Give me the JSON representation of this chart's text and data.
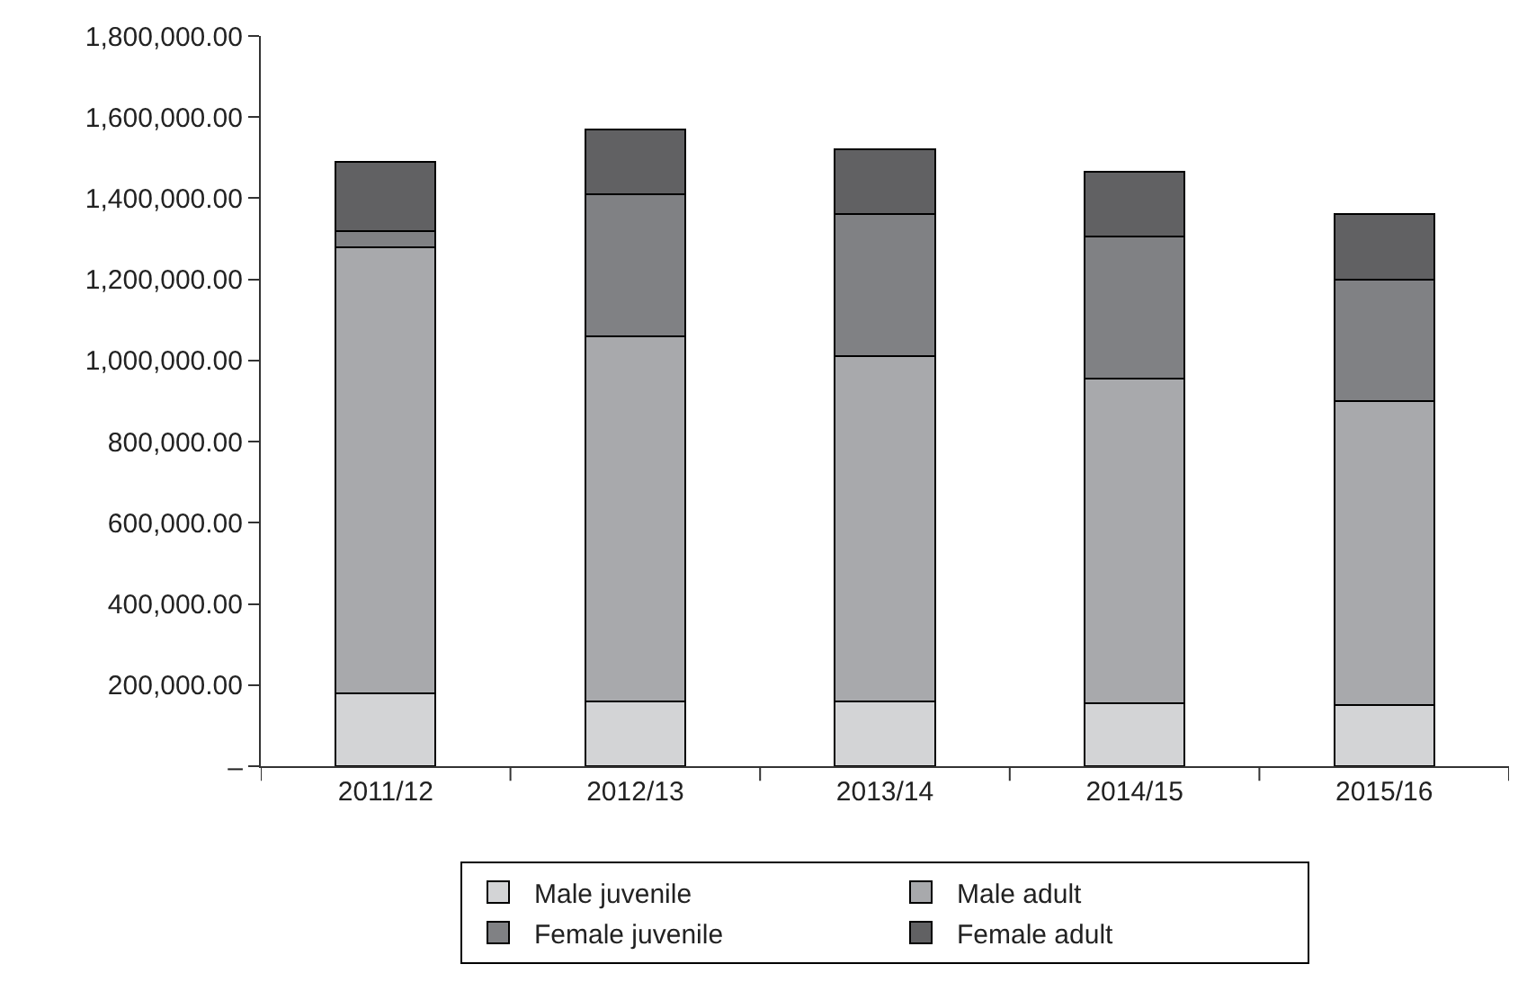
{
  "chart_data": {
    "type": "bar",
    "stacked": true,
    "categories": [
      "2011/12",
      "2012/13",
      "2013/14",
      "2014/15",
      "2015/16"
    ],
    "series": [
      {
        "name": "Male juvenile",
        "color": "#d3d4d6",
        "values": [
          180000,
          160000,
          160000,
          155000,
          150000
        ]
      },
      {
        "name": "Male adult",
        "color": "#a8a9ac",
        "values": [
          1100000,
          900000,
          850000,
          800000,
          750000
        ]
      },
      {
        "name": "Female juvenile",
        "color": "#808184",
        "values": [
          40000,
          350000,
          350000,
          350000,
          300000
        ]
      },
      {
        "name": "Female adult",
        "color": "#616163",
        "values": [
          170000,
          160000,
          160000,
          160000,
          160000
        ]
      }
    ],
    "ylim": [
      0,
      1800000
    ],
    "yticks": [
      {
        "value": 0,
        "label": "–"
      },
      {
        "value": 200000,
        "label": "200,000.00"
      },
      {
        "value": 400000,
        "label": "400,000.00"
      },
      {
        "value": 600000,
        "label": "600,000.00"
      },
      {
        "value": 800000,
        "label": "800,000.00"
      },
      {
        "value": 1000000,
        "label": "1,000,000.00"
      },
      {
        "value": 1200000,
        "label": "1,200,000.00"
      },
      {
        "value": 1400000,
        "label": "1,400,000.00"
      },
      {
        "value": 1600000,
        "label": "1,600,000.00"
      },
      {
        "value": 1800000,
        "label": "1,800,000.00"
      }
    ],
    "legend": "bottom"
  }
}
